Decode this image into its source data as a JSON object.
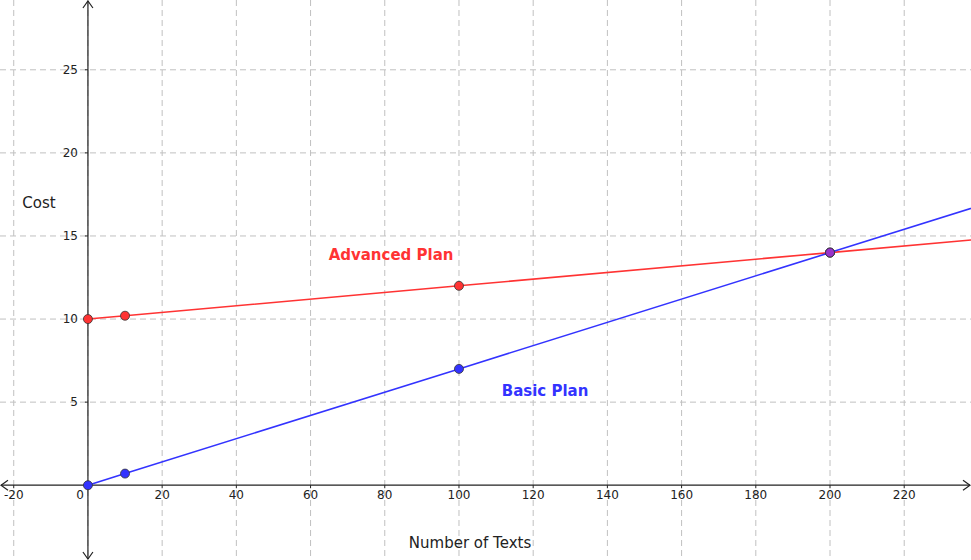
{
  "chart_data": {
    "type": "line",
    "x_label": "Number of Texts",
    "y_label": "Cost",
    "xlim": [
      -23.7,
      238
    ],
    "ylim": [
      -4.5,
      29.2
    ],
    "xticks": [
      -20,
      0,
      20,
      40,
      60,
      80,
      100,
      120,
      140,
      160,
      180,
      200,
      220
    ],
    "yticks": [
      5,
      10,
      15,
      20,
      25
    ],
    "grid": true,
    "series": [
      {
        "color": "#ff3333",
        "marker": "circle",
        "line_style": "solid",
        "x": [
          0,
          10,
          100,
          200,
          240
        ],
        "values": [
          10,
          10.2,
          12,
          14,
          14.8
        ]
      },
      {
        "color": "#3333ff",
        "marker": "circle",
        "line_style": "solid",
        "x": [
          0,
          10,
          100,
          200,
          240
        ],
        "values": [
          0,
          0.7,
          7,
          14,
          16.8
        ]
      }
    ],
    "intersection": {
      "x": 200,
      "y": 14,
      "color": "#9933cc"
    },
    "annotations": [
      {
        "text": "Advanced Plan",
        "x": 81.7,
        "y": 13.85,
        "color": "#ff3333"
      },
      {
        "text": "Basic Plan",
        "x": 123.2,
        "y": 5.7,
        "color": "#3333ff"
      }
    ]
  }
}
